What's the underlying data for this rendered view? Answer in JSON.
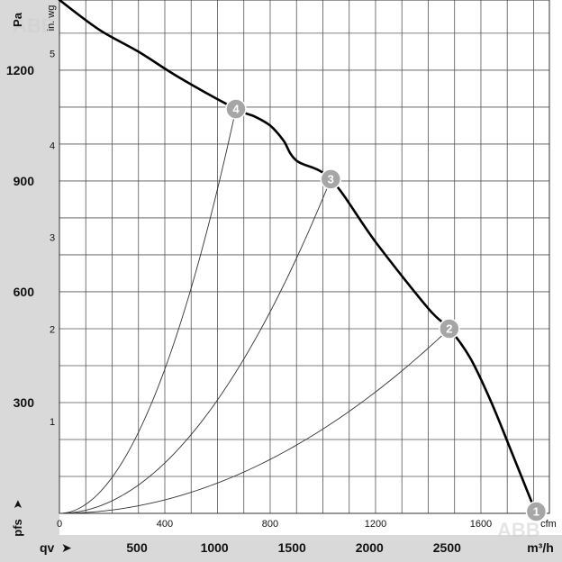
{
  "chart_data": {
    "type": "line",
    "y_unit": "Pa",
    "y_unit_secondary": "in. wg",
    "x_unit_primary": "cfm",
    "x_label": "qv",
    "x_unit_secondary": "m³/h",
    "y_label": "pfs",
    "y_ticks_pa": [
      "300",
      "600",
      "900",
      "1200"
    ],
    "y_ticks_inwg": [
      "1",
      "2",
      "3",
      "4",
      "5"
    ],
    "x_ticks_cfm": [
      "0",
      "400",
      "800",
      "1200",
      "1600"
    ],
    "x_ticks_m3h": [
      "500",
      "1000",
      "1500",
      "2000",
      "2500"
    ],
    "xlim_cfm": [
      0,
      1860
    ],
    "ylim_pa": [
      0,
      1390
    ],
    "grid": true,
    "series": [
      {
        "x": [
          0,
          150,
          300,
          455,
          670,
          740,
          800,
          850,
          900,
          1030,
          1200,
          1400,
          1480,
          1560,
          1640,
          1720,
          1810
        ],
        "y": [
          1390,
          1310,
          1250,
          1180,
          1095,
          1075,
          1050,
          1010,
          955,
          905,
          735,
          555,
          500,
          420,
          300,
          160,
          0
        ]
      }
    ],
    "system_curves": [
      {
        "marker": "2",
        "x": 1480,
        "y": 500
      },
      {
        "marker": "3",
        "x": 1030,
        "y": 905
      },
      {
        "marker": "4",
        "x": 670,
        "y": 1095
      }
    ],
    "operating_points": [
      {
        "label": "1",
        "x": 1810,
        "y": 0
      },
      {
        "label": "2",
        "x": 1480,
        "y": 500
      },
      {
        "label": "3",
        "x": 1030,
        "y": 905
      },
      {
        "label": "4",
        "x": 670,
        "y": 1095
      }
    ]
  },
  "colors": {
    "background_band": "#d9d9d9",
    "marker": "#a6a6a6",
    "curve": "#000000"
  }
}
